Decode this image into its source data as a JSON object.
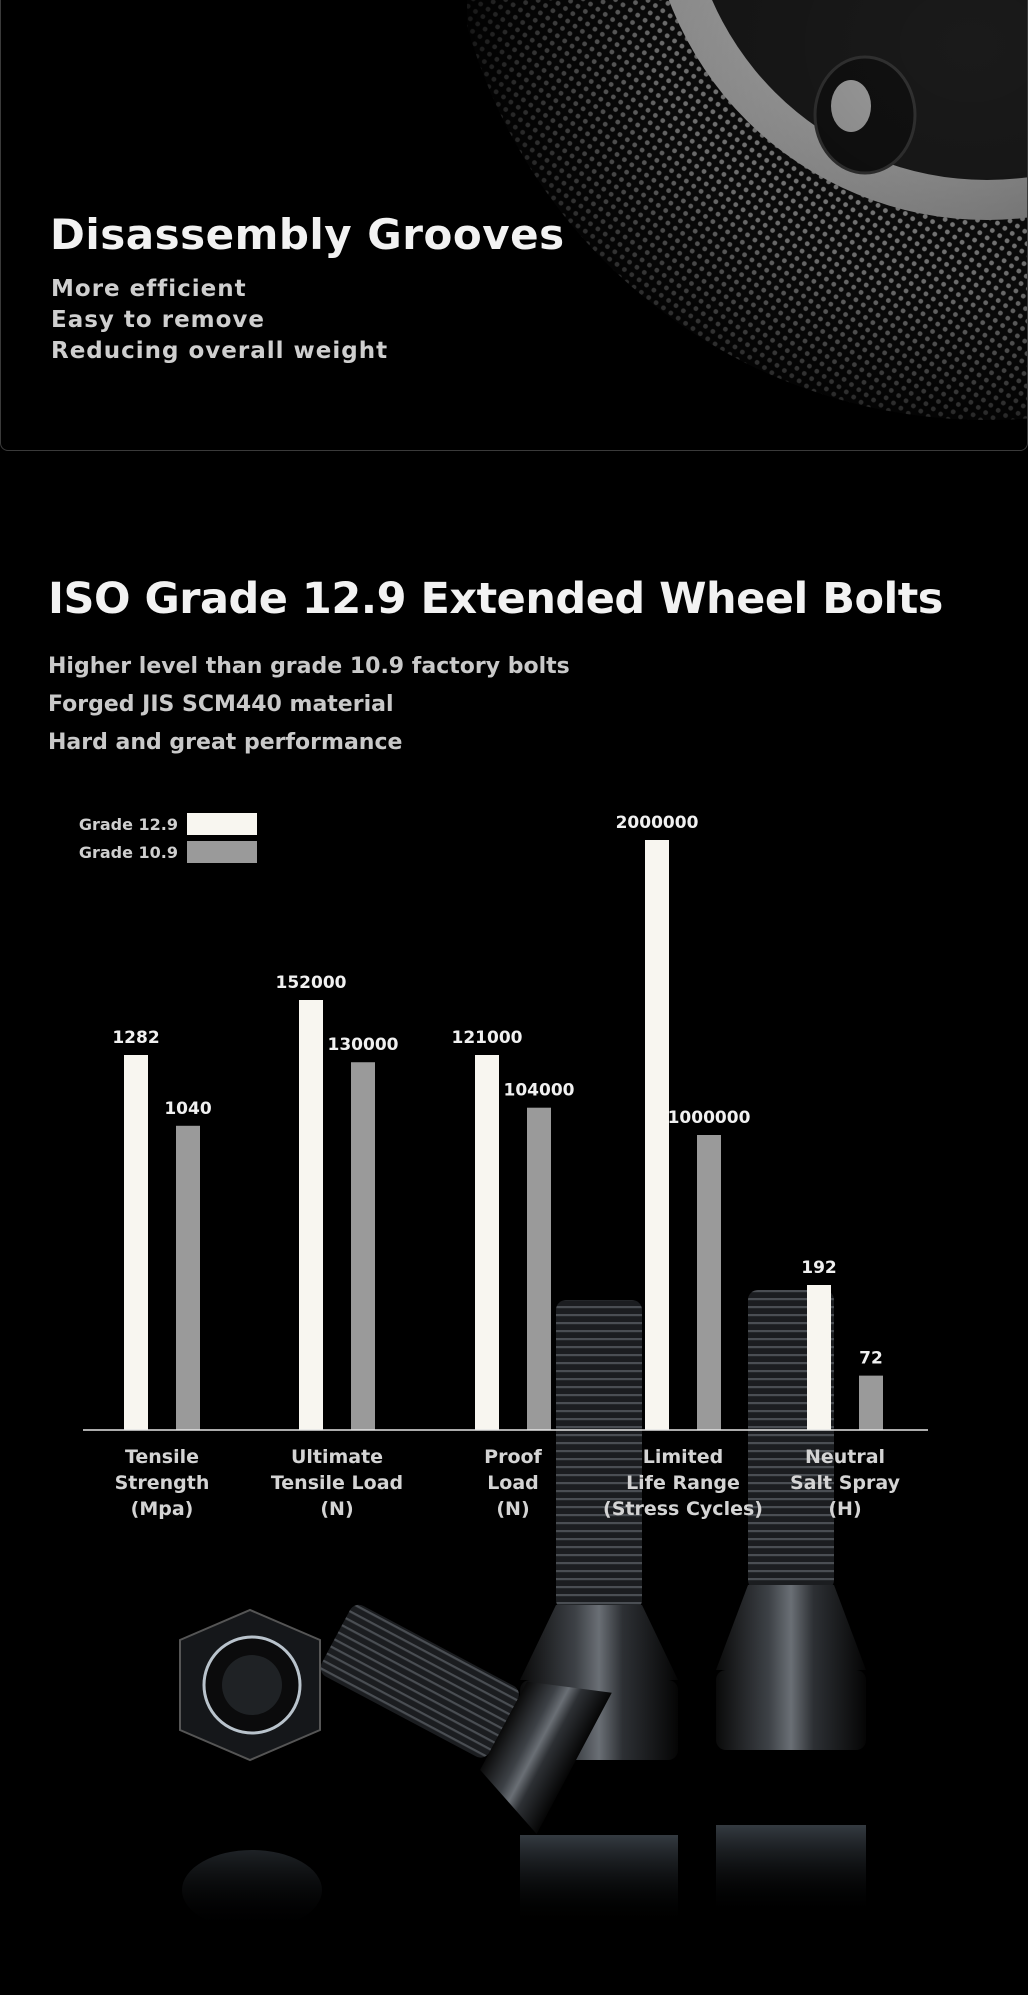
{
  "top_panel": {
    "title": "Disassembly Grooves",
    "lines": [
      "More efficient",
      "Easy to remove",
      "Reducing overall weight"
    ]
  },
  "iso_section": {
    "title": "ISO Grade 12.9 Extended Wheel Bolts",
    "lines": [
      "Higher level than grade 10.9 factory bolts",
      "Forged JIS SCM440 material",
      "Hard and great performance"
    ]
  },
  "chart_data": {
    "type": "bar",
    "title": "",
    "xlabel": "",
    "ylabel": "",
    "grid": false,
    "legend_position": "top-left",
    "categories": [
      [
        "Tensile",
        "Strength",
        "(Mpa)"
      ],
      [
        "Ultimate",
        "Tensile Load",
        "(N)"
      ],
      [
        "Proof",
        "Load",
        "(N)"
      ],
      [
        "Limited",
        "Life Range",
        "(Stress Cycles)"
      ],
      [
        "Neutral",
        "Salt Spray",
        "(H)"
      ]
    ],
    "series": [
      {
        "name": "Grade 12.9",
        "color": "#f8f6f0",
        "values": [
          1282,
          152000,
          121000,
          2000000,
          192
        ]
      },
      {
        "name": "Grade 10.9",
        "color": "#9a9a9a",
        "values": [
          1040,
          130000,
          104000,
          1000000,
          72
        ]
      }
    ],
    "value_labels": [
      [
        "1282",
        "152000",
        "121000",
        "2000000",
        "192"
      ],
      [
        "1040",
        "130000",
        "104000",
        "1000000",
        "72"
      ]
    ],
    "note": "Each category is plotted on its own independent scale"
  }
}
